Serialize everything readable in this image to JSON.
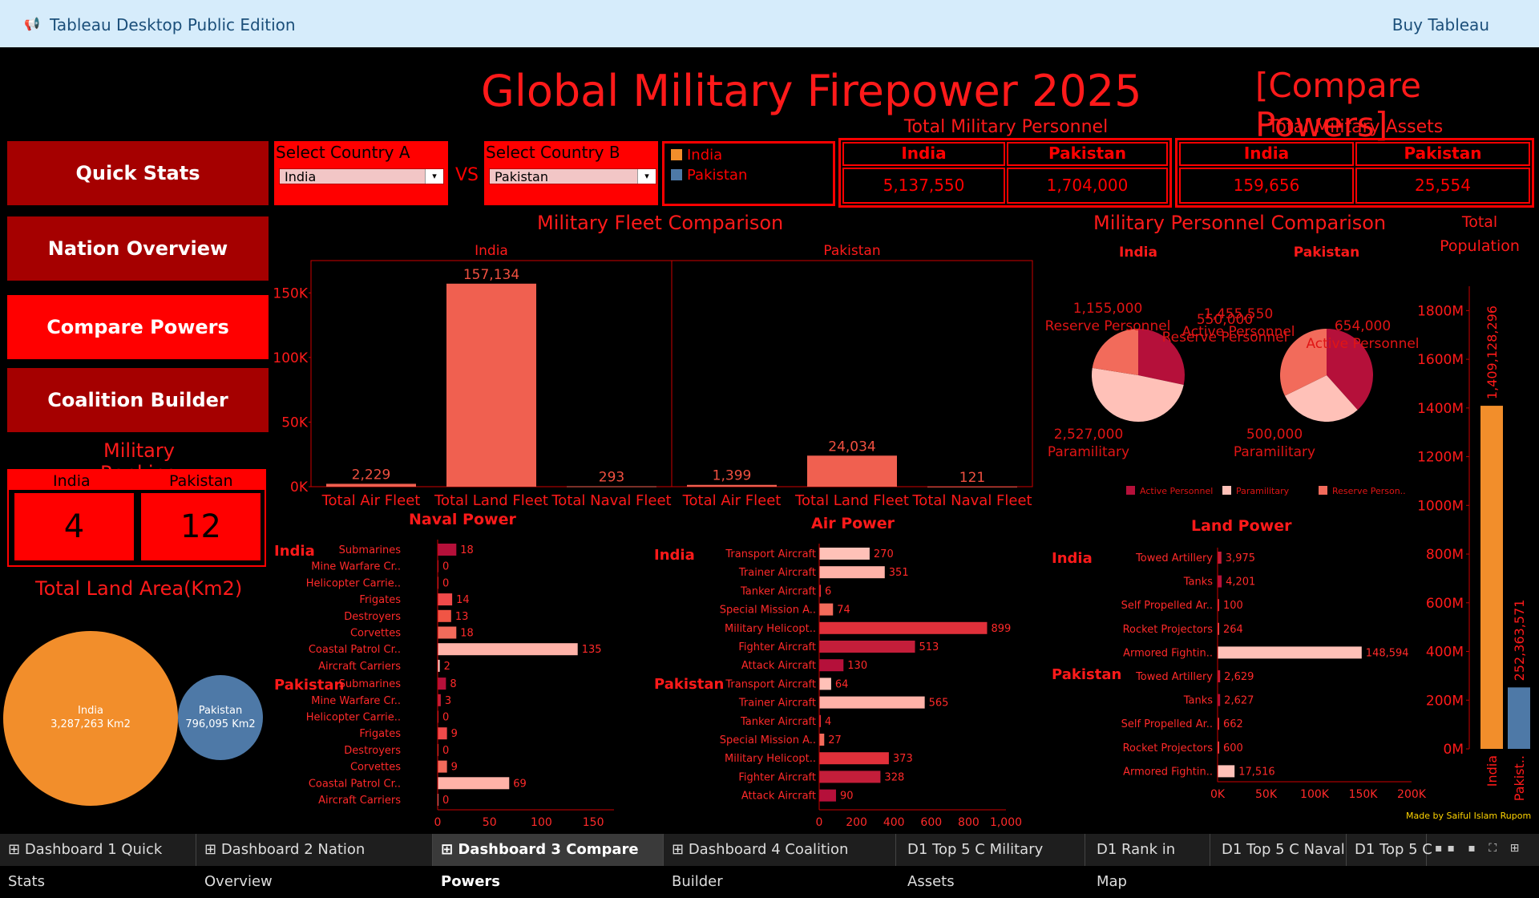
{
  "app": {
    "title": "Tableau Desktop Public Edition",
    "buy": "Buy Tableau"
  },
  "header": {
    "title": "Global Military Firepower 2025",
    "subtitle": "[Compare Powers]"
  },
  "nav": {
    "items": [
      "Quick Stats",
      "Nation Overview",
      "Compare Powers",
      "Coalition Builder"
    ],
    "active": "Compare Powers"
  },
  "selectors": {
    "a_label": "Select Country A",
    "a_value": "India",
    "b_label": "Select Country B",
    "b_value": "Pakistan",
    "vs": "VS"
  },
  "legend": {
    "items": [
      {
        "name": "India",
        "color": "#f28e2b"
      },
      {
        "name": "Pakistan",
        "color": "#4e79a7"
      }
    ]
  },
  "personnel": {
    "title": "Total Military Personnel",
    "a_name": "India",
    "b_name": "Pakistan",
    "a_value": "5,137,550",
    "b_value": "1,704,000"
  },
  "assets": {
    "title": "Total Military Assets",
    "a_name": "India",
    "b_name": "Pakistan",
    "a_value": "159,656",
    "b_value": "25,554"
  },
  "ranking": {
    "title": "Military Ranking",
    "a_name": "India",
    "b_name": "Pakistan",
    "a_value": "4",
    "b_value": "12"
  },
  "land_area": {
    "title": "Total Land Area(Km2)",
    "a_name": "India",
    "a_value": "3,287,263 Km2",
    "b_name": "Pakistan",
    "b_value": "796,095 Km2",
    "a_num": 3287263,
    "b_num": 796095
  },
  "fleet": {
    "title": "Military Fleet Comparison",
    "panels": [
      "India",
      "Pakistan"
    ],
    "categories": [
      "Total Air Fleet",
      "Total Land Fleet",
      "Total Naval Fleet"
    ],
    "ticks": [
      "150K",
      "100K",
      "50K",
      "0K"
    ]
  },
  "personnel_pie": {
    "title": "Military Personnel Comparison",
    "panels": [
      "India",
      "Pakistan"
    ],
    "india": [
      {
        "label": "Reserve Personnel",
        "value": "1,155,000"
      },
      {
        "label": "Active Personnel",
        "value": "1,455,550"
      },
      {
        "label": "Paramilitary",
        "value": "2,527,000"
      }
    ],
    "pakistan": [
      {
        "label": "Reserve Personnel",
        "value": "550,000"
      },
      {
        "label": "Active Personnel",
        "value": "654,000"
      },
      {
        "label": "Paramilitary",
        "value": "500,000"
      }
    ],
    "legend": [
      "Active Personnel",
      "Paramilitary",
      "Reserve Person.."
    ]
  },
  "population": {
    "title_line1": "Total",
    "title_line2": "Population",
    "ticks": [
      "1800M",
      "1600M",
      "1400M",
      "1200M",
      "1000M",
      "800M",
      "600M",
      "400M",
      "200M",
      "0M"
    ],
    "a_label": "India",
    "b_label": "Pakist..",
    "a_value": "1,409,128,296",
    "b_value": "252,363,571"
  },
  "naval": {
    "title": "Naval Power",
    "a_name": "India",
    "b_name": "Pakistan",
    "ticks": [
      "0",
      "50",
      "100",
      "150"
    ]
  },
  "air": {
    "title": "Air Power",
    "a_name": "India",
    "b_name": "Pakistan",
    "ticks": [
      "0",
      "200",
      "400",
      "600",
      "800",
      "1,000"
    ]
  },
  "land": {
    "title": "Land Power",
    "a_name": "India",
    "b_name": "Pakistan",
    "ticks": [
      "0K",
      "50K",
      "100K",
      "150K",
      "200K"
    ]
  },
  "credit": "Made by Saiful Islam Rupom",
  "tabs": [
    "Dashboard 1 Quick Stats",
    "Dashboard 2 Nation Overview",
    "Dashboard 3 Compare Powers",
    "Dashboard 4 Coalition Builder",
    "D1 Top 5 C Military Assets",
    "D1 Rank in Map",
    "D1 Top 5 C Naval",
    "D1 Top 5 C"
  ],
  "colors": {
    "accent": "#ff0000",
    "dark_red": "#a50000",
    "bar": "#f06050",
    "pie_active": "#b5103a",
    "pie_para": "#ffc1b8",
    "pie_reserve": "#f26b5b",
    "india": "#f28e2b",
    "pakistan": "#4e79a7"
  },
  "chart_data": [
    {
      "type": "bar",
      "title": "Military Fleet Comparison",
      "categories": [
        "Total Air Fleet",
        "Total Land Fleet",
        "Total Naval Fleet"
      ],
      "series": [
        {
          "name": "India",
          "values": [
            2229,
            157134,
            293
          ]
        },
        {
          "name": "Pakistan",
          "values": [
            1399,
            24034,
            121
          ]
        }
      ],
      "labels": {
        "India": [
          "2,229",
          "157,134",
          "293"
        ],
        "Pakistan": [
          "1,399",
          "24,034",
          "121"
        ]
      },
      "ylim": [
        0,
        175000
      ]
    },
    {
      "type": "pie",
      "title": "Military Personnel Comparison",
      "categories": [
        "Active Personnel",
        "Paramilitary",
        "Reserve Personnel"
      ],
      "series": [
        {
          "name": "India",
          "values": [
            1455550,
            2527000,
            1155000
          ]
        },
        {
          "name": "Pakistan",
          "values": [
            654000,
            500000,
            550000
          ]
        }
      ]
    },
    {
      "type": "bar",
      "title": "Naval Power",
      "categories": [
        "Submarines",
        "Mine Warfare Cr..",
        "Helicopter Carrie..",
        "Frigates",
        "Destroyers",
        "Corvettes",
        "Coastal Patrol Cr..",
        "Aircraft Carriers"
      ],
      "series": [
        {
          "name": "India",
          "values": [
            18,
            0,
            0,
            14,
            13,
            18,
            135,
            2
          ]
        },
        {
          "name": "Pakistan",
          "values": [
            8,
            3,
            0,
            9,
            0,
            9,
            69,
            0
          ]
        }
      ],
      "xlim": [
        0,
        170
      ]
    },
    {
      "type": "bar",
      "title": "Air Power",
      "categories": [
        "Transport Aircraft",
        "Trainer Aircraft",
        "Tanker Aircraft",
        "Special Mission A..",
        "Military Helicopt..",
        "Fighter Aircraft",
        "Attack Aircraft"
      ],
      "series": [
        {
          "name": "India",
          "values": [
            270,
            351,
            6,
            74,
            899,
            513,
            130
          ]
        },
        {
          "name": "Pakistan",
          "values": [
            64,
            565,
            4,
            27,
            373,
            328,
            90
          ]
        }
      ],
      "xlim": [
        0,
        1000
      ]
    },
    {
      "type": "bar",
      "title": "Land Power",
      "categories": [
        "Towed Artillery",
        "Tanks",
        "Self Propelled Ar..",
        "Rocket Projectors",
        "Armored Fightin.."
      ],
      "series": [
        {
          "name": "India",
          "values": [
            3975,
            4201,
            100,
            264,
            148594
          ]
        },
        {
          "name": "Pakistan",
          "values": [
            2629,
            2627,
            662,
            600,
            17516
          ]
        }
      ],
      "xlim": [
        0,
        200000
      ]
    },
    {
      "type": "bar",
      "title": "Total Population",
      "categories": [
        "India",
        "Pakist.."
      ],
      "values": [
        1409128296,
        252363571
      ],
      "ylim": [
        0,
        1900000000
      ]
    }
  ]
}
